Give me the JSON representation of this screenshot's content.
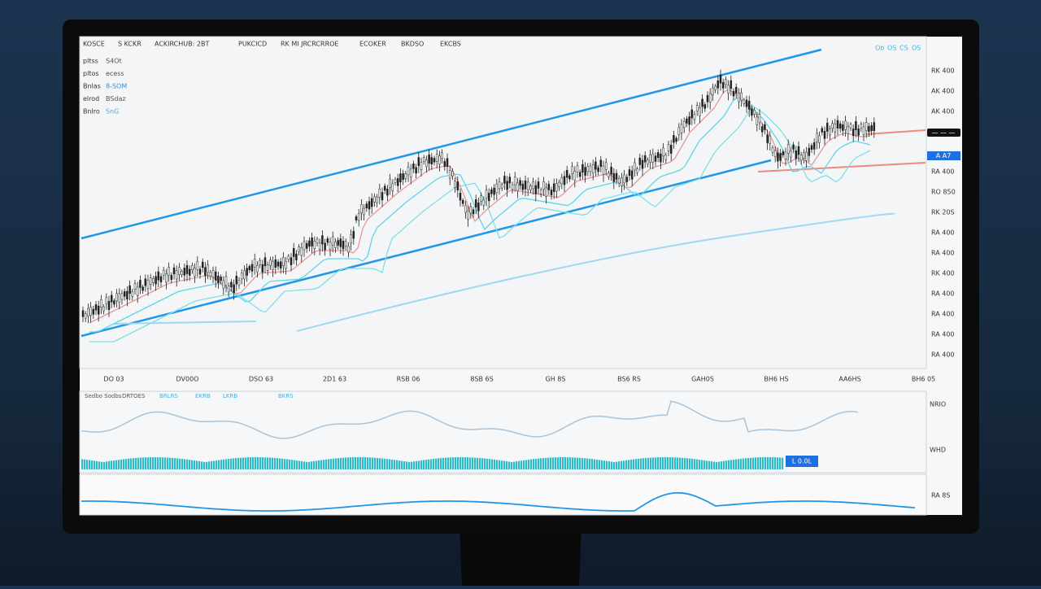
{
  "header": {
    "items": [
      "KOSCE",
      "S KCKR",
      "ACKIRCHUB: 2BT",
      "PUKCICD",
      "RK MI JRCRCRROE",
      "ECOKER",
      "BKDSO",
      "EKCBS"
    ]
  },
  "legend": [
    {
      "key": "pltss",
      "value": "S4Ot"
    },
    {
      "key": "pltos",
      "value": "ecess"
    },
    {
      "key": "Bnlas",
      "value": "8-SOM"
    },
    {
      "key": "elrod",
      "value": "BSdaz"
    },
    {
      "key": "Bnlro",
      "value": "SnG"
    }
  ],
  "toolbar": [
    "Ob",
    "OS",
    "CS",
    "OS"
  ],
  "price_axis": {
    "labels": [
      "RK 400",
      "AK 400",
      "AK 400",
      "RA 400",
      "RO 850",
      "RK 20S",
      "RA 400",
      "RA 400",
      "RK 400",
      "RA 400",
      "RA 400",
      "RA 400",
      "RA 400"
    ],
    "badge_dark": "— — —",
    "badge_blue": "A A7"
  },
  "time_axis": {
    "labels": [
      "DO 03",
      "DV00O",
      "DSO 63",
      "2D1 63",
      "RSB 06",
      "8SB 6S",
      "GH 8S",
      "BS6 RS",
      "GAH0S",
      "BH6 HS",
      "AA6HS",
      "BH6 05"
    ]
  },
  "indicator": {
    "header": [
      "Sedbo Sodbs",
      "DRTOES",
      "BRLRS",
      "EKRB",
      "LKRB",
      "BKRS"
    ],
    "badge": "L 0.0L",
    "axis_labels": [
      "NRIO",
      "WHD"
    ]
  },
  "lower_panel": {
    "axis_label": "RA 8S"
  }
}
